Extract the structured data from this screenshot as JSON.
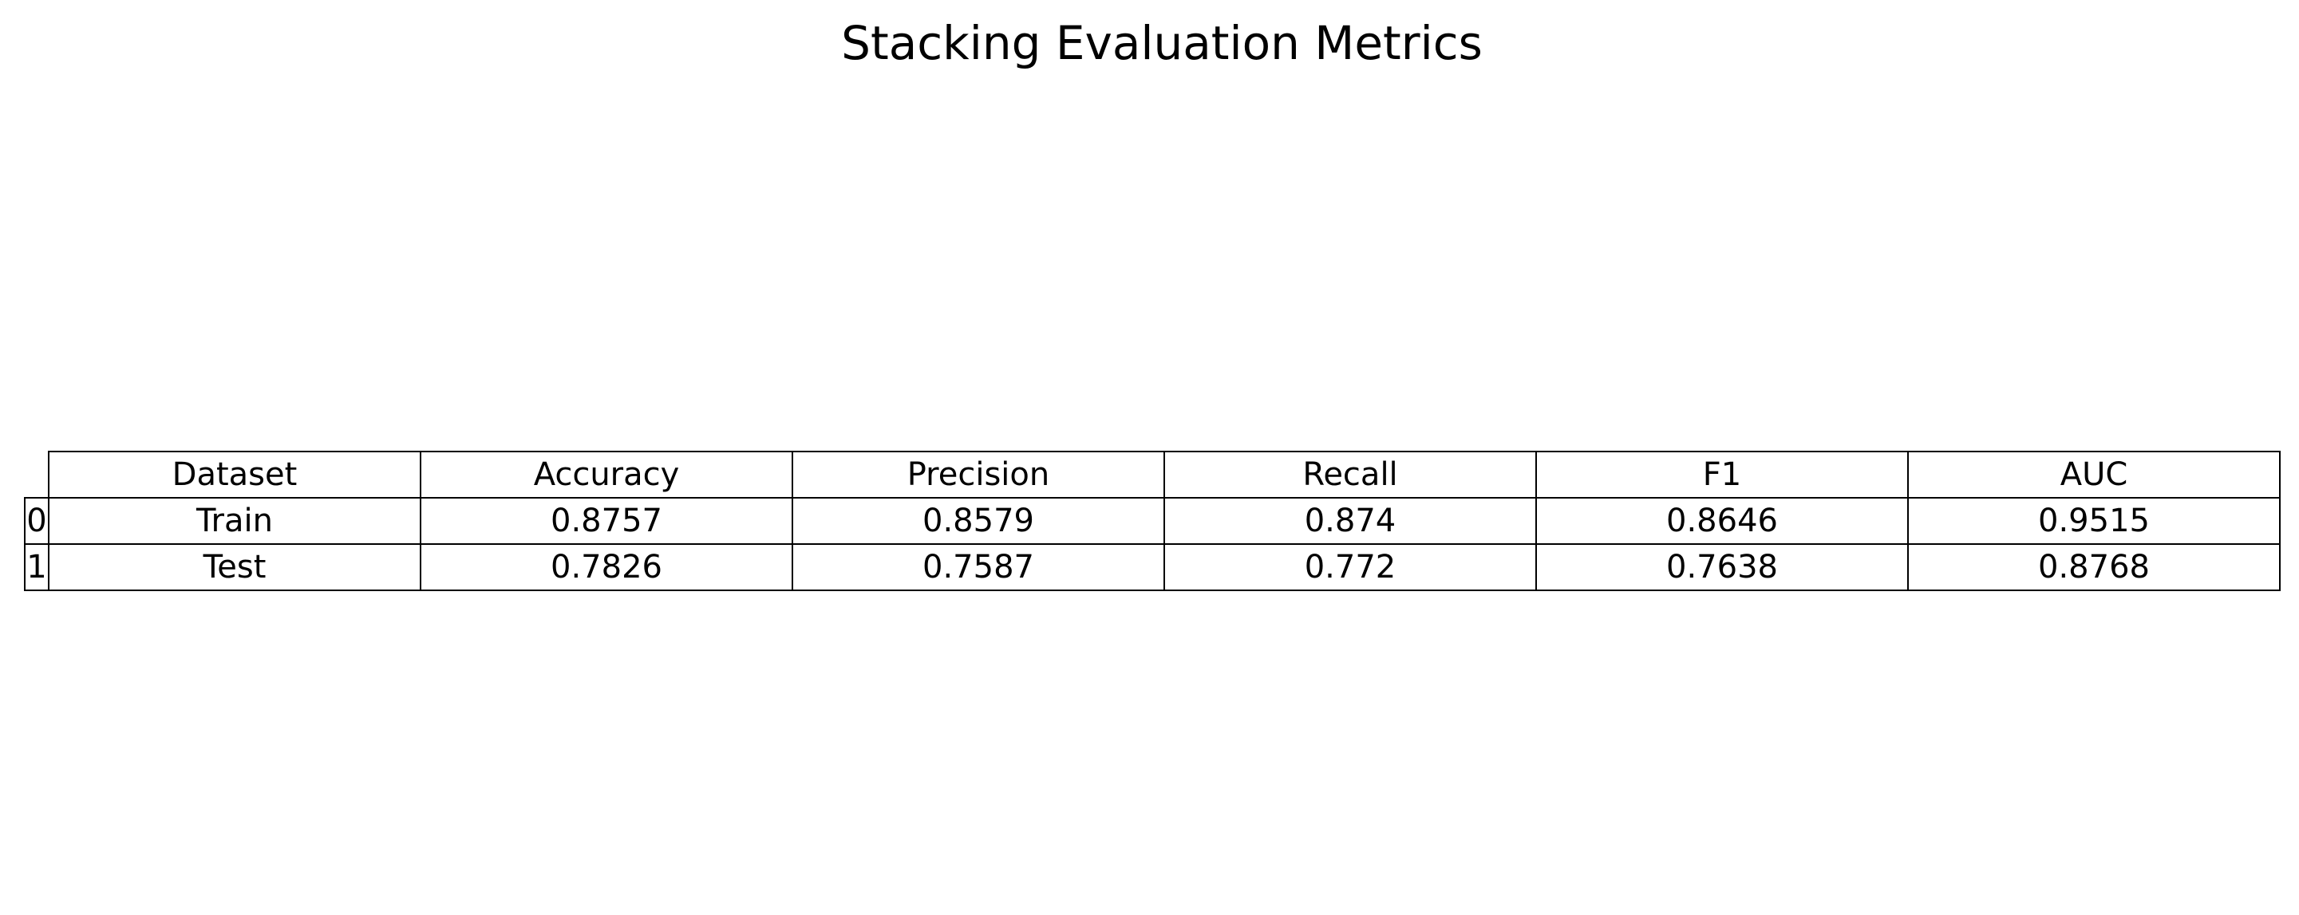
{
  "chart_data": {
    "type": "table",
    "title": "Stacking Evaluation Metrics",
    "columns": [
      "Dataset",
      "Accuracy",
      "Precision",
      "Recall",
      "F1",
      "AUC"
    ],
    "row_index": [
      "0",
      "1"
    ],
    "rows": [
      [
        "Train",
        "0.8757",
        "0.8579",
        "0.874",
        "0.8646",
        "0.9515"
      ],
      [
        "Test",
        "0.7826",
        "0.7587",
        "0.772",
        "0.7638",
        "0.8768"
      ]
    ]
  },
  "colors": {
    "background": "#ffffff",
    "text": "#000000",
    "border": "#000000"
  }
}
